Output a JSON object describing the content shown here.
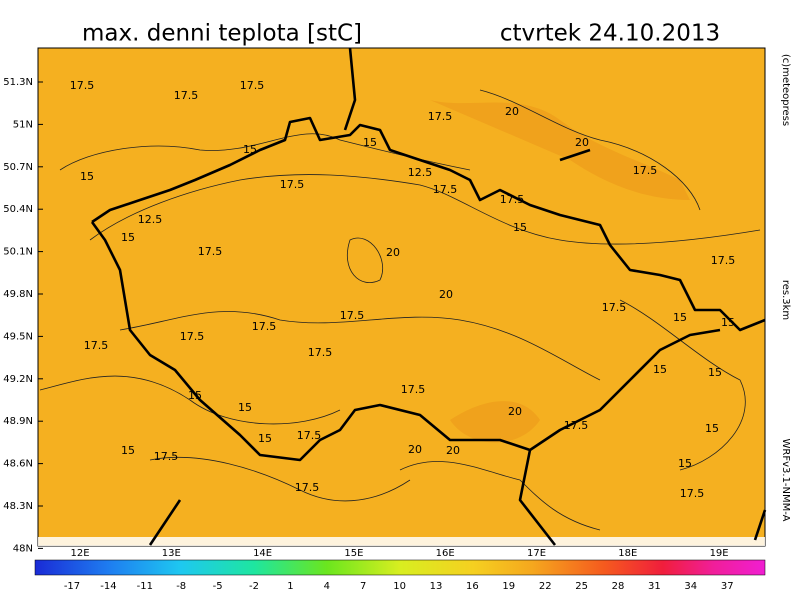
{
  "header": {
    "title": "max. denni teplota [stC]",
    "date": "ctvrtek 24.10.2013"
  },
  "side": {
    "copyright": "(c)meteopress",
    "resolution": "res.3km",
    "model": "WRFv3.1-NMM-A"
  },
  "lat_labels": [
    "51.3N",
    "51N",
    "50.7N",
    "50.4N",
    "50.1N",
    "49.8N",
    "49.5N",
    "49.2N",
    "48.9N",
    "48.6N",
    "48.3N",
    "48N"
  ],
  "lon_labels": [
    "12E",
    "13E",
    "14E",
    "15E",
    "16E",
    "17E",
    "18E",
    "19E"
  ],
  "colorbar_labels": [
    -17,
    -14,
    -11,
    -8,
    -5,
    -2,
    1,
    4,
    7,
    10,
    13,
    16,
    19,
    22,
    25,
    28,
    31,
    34,
    37
  ],
  "contour_labels": [
    "17.5",
    "17.5",
    "17.5",
    "20",
    "17.5",
    "15",
    "15",
    "12.5",
    "17.5",
    "15",
    "12.5",
    "15",
    "17.5",
    "17.5",
    "20",
    "20",
    "17.5",
    "15",
    "17.5",
    "20",
    "17.5",
    "17.5",
    "17.5",
    "17.5",
    "17.5",
    "15",
    "17.5",
    "15",
    "17.5",
    "15",
    "15",
    "17.5",
    "20",
    "17.5",
    "15",
    "15",
    "17.5",
    "17.5",
    "20",
    "20",
    "17.5",
    "17.5",
    "15",
    "15",
    "15",
    "15"
  ]
}
